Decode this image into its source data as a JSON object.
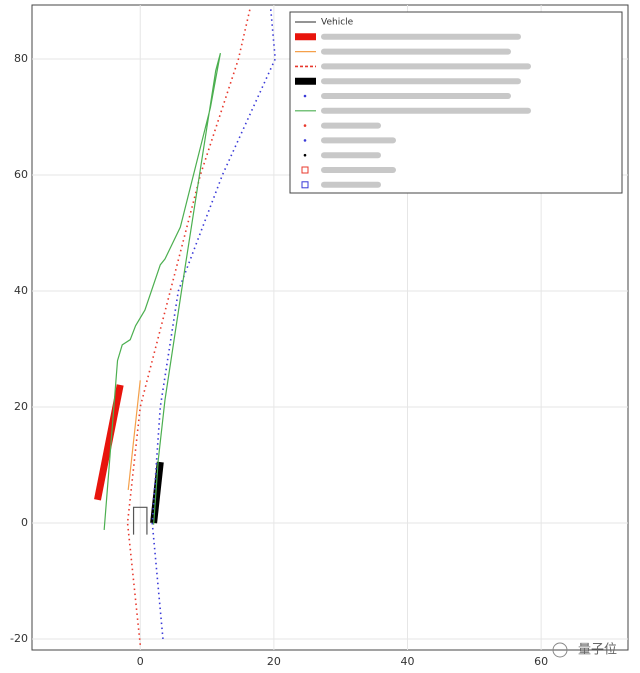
{
  "chart_data": {
    "type": "line",
    "xlim": [
      -16.2,
      73
    ],
    "ylim": [
      -21.9,
      89.3
    ],
    "xticks": [
      0,
      20,
      40,
      60
    ],
    "yticks": [
      -20,
      0,
      20,
      40,
      60,
      80
    ],
    "grid": true,
    "legend": "top-right",
    "series": [
      {
        "name": "Vehicle",
        "color": "#555555",
        "style": "thin",
        "x": [
          -1,
          -1,
          1,
          1
        ],
        "values": [
          -2,
          2.7,
          2.7,
          -2
        ]
      },
      {
        "color": "#e8140c",
        "style": "thick",
        "x": [
          -6.4,
          -3
        ],
        "values": [
          4,
          23.8
        ]
      },
      {
        "color": "#f5a04a",
        "style": "thin",
        "x": [
          -1.8,
          0
        ],
        "values": [
          5.7,
          24.6
        ]
      },
      {
        "color": "#e8382c",
        "style": "dotted",
        "x": [
          0,
          -1.9,
          0,
          4.5,
          9,
          14.7,
          16.5
        ],
        "values": [
          -21,
          0,
          20,
          40,
          60,
          80,
          89
        ]
      },
      {
        "color": "#000000",
        "style": "thick",
        "x": [
          2,
          3
        ],
        "values": [
          0,
          10.5
        ]
      },
      {
        "color": "#3a3ad8",
        "style": "dotted",
        "x": [
          3.4,
          1.8,
          3,
          5.7,
          12.3,
          20.2,
          19.5
        ],
        "values": [
          -20,
          0,
          20,
          40,
          60,
          80,
          89
        ]
      },
      {
        "color": "#4caf50",
        "style": "thin",
        "x": [
          -5.4,
          -3.4,
          -2.7,
          -1.5,
          -0.7,
          0.7,
          3,
          3.7,
          6,
          10.5,
          12,
          11.3,
          6.7,
          3.7,
          2.7,
          2
        ],
        "values": [
          -1.2,
          28,
          30.7,
          31.6,
          34,
          36.7,
          44.5,
          45.5,
          51,
          71.6,
          81,
          78,
          44,
          21.2,
          10.9,
          -0.3
        ]
      }
    ],
    "watermark": "量子位"
  }
}
